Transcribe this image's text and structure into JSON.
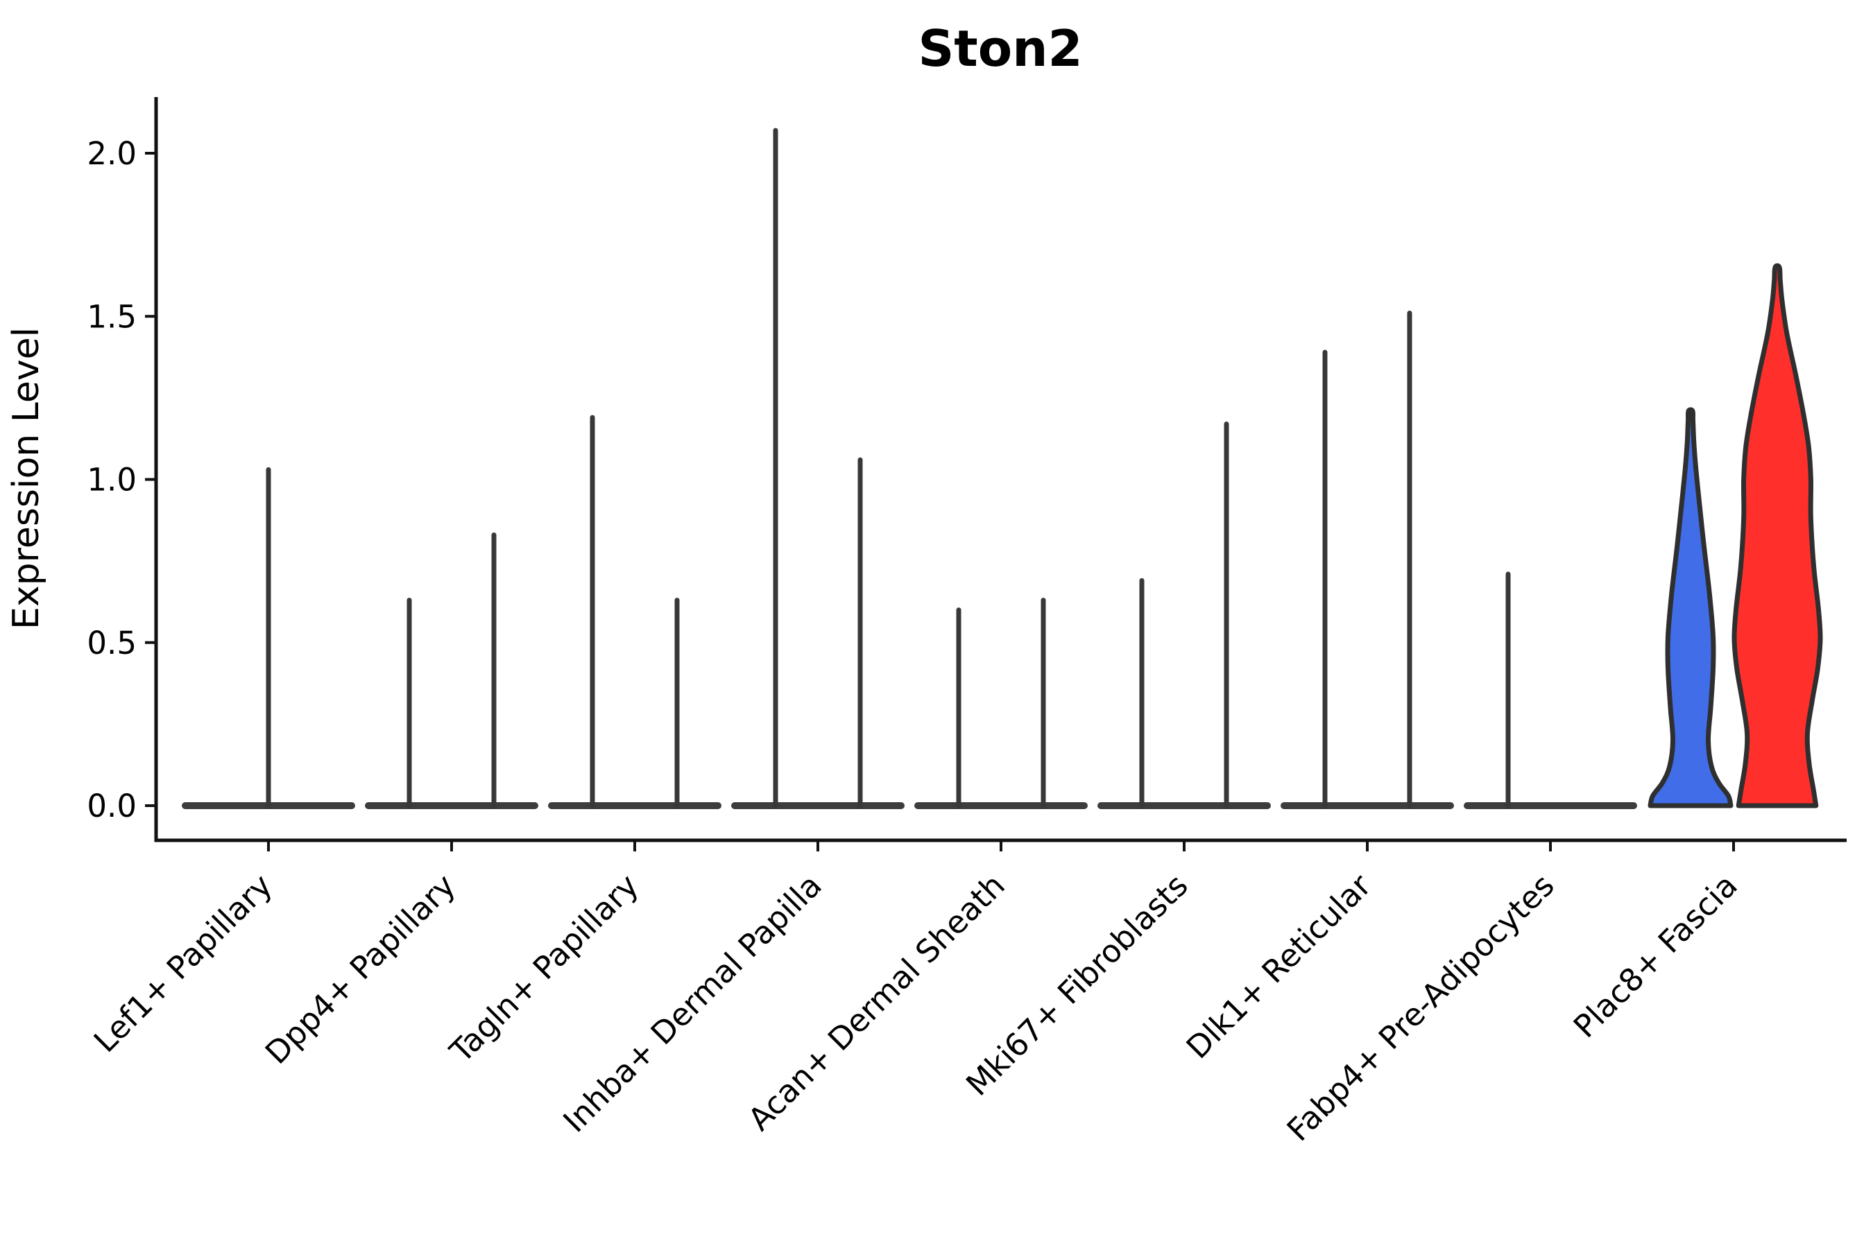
{
  "title": "Ston2",
  "y_axis": {
    "label": "Expression Level",
    "tick_labels": [
      "0.0",
      "0.5",
      "1.0",
      "1.5",
      "2.0"
    ]
  },
  "chart_data": {
    "type": "violin",
    "title": "Ston2",
    "xlabel": "",
    "ylabel": "Expression Level",
    "ylim": [
      0,
      2.15
    ],
    "yticks": [
      0.0,
      0.5,
      1.0,
      1.5,
      2.0
    ],
    "ytick_labels": [
      "0.0",
      "0.5",
      "1.0",
      "1.5",
      "2.0"
    ],
    "grid": false,
    "legend": "none",
    "x_tick_rotation_degrees": 45,
    "categories": [
      "Lef1+ Papillary",
      "Dpp4+ Papillary",
      "Tagln+ Papillary",
      "Inhba+ Dermal Papilla",
      "Acan+ Dermal Sheath",
      "Mki67+ Fibroblasts",
      "Dlk1+ Reticular",
      "Fabp4+ Pre-Adipocytes",
      "Plac8+ Fascia"
    ],
    "colors": {
      "axis": "#111111",
      "spike": "#383838",
      "base": "#3d3d3d",
      "violin_outline": "#2f2f2f",
      "blue_violin": "#416EE8",
      "red_violin": "#FF302B"
    },
    "groups": [
      {
        "category": "Lef1+ Papillary",
        "spikes": [
          {
            "slot": "center",
            "max": 1.03
          }
        ]
      },
      {
        "category": "Dpp4+ Papillary",
        "spikes": [
          {
            "slot": "left",
            "max": 0.63
          },
          {
            "slot": "right",
            "max": 0.83
          }
        ]
      },
      {
        "category": "Tagln+ Papillary",
        "spikes": [
          {
            "slot": "left",
            "max": 1.19
          },
          {
            "slot": "right",
            "max": 0.63
          }
        ]
      },
      {
        "category": "Inhba+ Dermal Papilla",
        "spikes": [
          {
            "slot": "left",
            "max": 2.07
          },
          {
            "slot": "right",
            "max": 1.06
          }
        ]
      },
      {
        "category": "Acan+ Dermal Sheath",
        "spikes": [
          {
            "slot": "left",
            "max": 0.6
          },
          {
            "slot": "right",
            "max": 0.63
          }
        ]
      },
      {
        "category": "Mki67+ Fibroblasts",
        "spikes": [
          {
            "slot": "left",
            "max": 0.69
          },
          {
            "slot": "right",
            "max": 1.17
          }
        ]
      },
      {
        "category": "Dlk1+ Reticular",
        "spikes": [
          {
            "slot": "left",
            "max": 1.39
          },
          {
            "slot": "right",
            "max": 1.51
          }
        ]
      },
      {
        "category": "Fabp4+ Pre-Adipocytes",
        "spikes": [
          {
            "slot": "left",
            "max": 0.71
          }
        ]
      },
      {
        "category": "Plac8+ Fascia",
        "filled": [
          {
            "series": "blue",
            "color": "#416EE8",
            "offset": -62,
            "max": 1.21,
            "max_halfwidth": 58,
            "profile": [
              [
                0.0,
                1.0
              ],
              [
                0.03,
                0.94
              ],
              [
                0.07,
                0.7
              ],
              [
                0.12,
                0.52
              ],
              [
                0.2,
                0.44
              ],
              [
                0.3,
                0.5
              ],
              [
                0.42,
                0.56
              ],
              [
                0.52,
                0.56
              ],
              [
                0.65,
                0.47
              ],
              [
                0.8,
                0.33
              ],
              [
                0.95,
                0.2
              ],
              [
                1.05,
                0.12
              ],
              [
                1.12,
                0.08
              ],
              [
                1.18,
                0.06
              ],
              [
                1.21,
                0.05
              ]
            ]
          },
          {
            "series": "red",
            "color": "#FF302B",
            "offset": 63,
            "max": 1.65,
            "max_halfwidth": 62,
            "profile": [
              [
                0.0,
                0.9
              ],
              [
                0.05,
                0.84
              ],
              [
                0.13,
                0.74
              ],
              [
                0.22,
                0.7
              ],
              [
                0.32,
                0.81
              ],
              [
                0.42,
                0.94
              ],
              [
                0.51,
                1.0
              ],
              [
                0.6,
                0.96
              ],
              [
                0.73,
                0.85
              ],
              [
                0.88,
                0.78
              ],
              [
                1.0,
                0.78
              ],
              [
                1.1,
                0.73
              ],
              [
                1.2,
                0.61
              ],
              [
                1.32,
                0.43
              ],
              [
                1.45,
                0.22
              ],
              [
                1.55,
                0.11
              ],
              [
                1.61,
                0.07
              ],
              [
                1.65,
                0.05
              ]
            ]
          }
        ]
      }
    ]
  }
}
